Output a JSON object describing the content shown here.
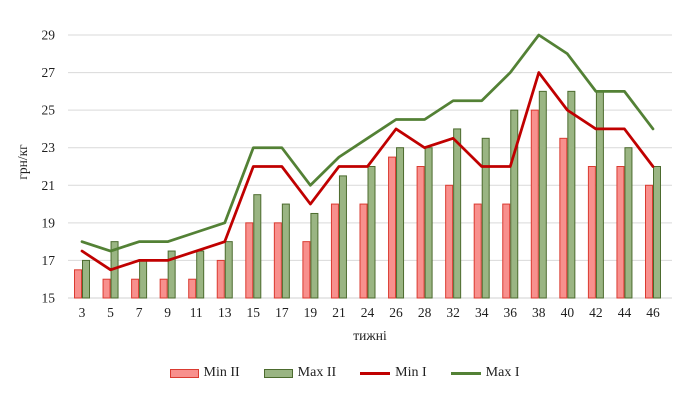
{
  "chart_data": {
    "type": "combo-bar-line",
    "title": "",
    "xlabel": "тижні",
    "ylabel": "грн/кг",
    "ylim": [
      15,
      29
    ],
    "ytick_step": 2,
    "yticks": [
      15,
      17,
      19,
      21,
      23,
      25,
      27,
      29
    ],
    "x_categories": [
      "3",
      "5",
      "7",
      "9",
      "11",
      "13",
      "15",
      "17",
      "19",
      "21",
      "24",
      "26",
      "28",
      "32",
      "34",
      "36",
      "38",
      "40",
      "42",
      "44",
      "46"
    ],
    "grid": true,
    "legend_position": "bottom",
    "series": [
      {
        "name": "Min II",
        "type": "bar",
        "color_fill": "#f8908d",
        "color_border": "#da3b31",
        "values": [
          16.5,
          16,
          16,
          16,
          16,
          17,
          19,
          19,
          18,
          20,
          20,
          22.5,
          22,
          21,
          20,
          20,
          25,
          23.5,
          22,
          22,
          21
        ]
      },
      {
        "name": "Max II",
        "type": "bar",
        "color_fill": "#9ab583",
        "color_border": "#4c6b2e",
        "values": [
          17,
          18,
          17,
          17.5,
          17.5,
          18,
          20.5,
          20,
          19.5,
          21.5,
          22,
          23,
          23,
          24,
          23.5,
          25,
          26,
          26,
          26,
          23,
          22
        ]
      },
      {
        "name": "Min I",
        "type": "line",
        "color": "#c00000",
        "values": [
          17.5,
          16.5,
          17,
          17,
          17.5,
          18,
          22,
          22,
          20,
          22,
          22,
          24,
          23,
          23.5,
          22,
          22,
          27,
          25,
          24,
          24,
          22
        ]
      },
      {
        "name": "Max I",
        "type": "line",
        "color": "#538135",
        "values": [
          18,
          17.5,
          18,
          18,
          18.5,
          19,
          23,
          23,
          21,
          22.5,
          23.5,
          24.5,
          24.5,
          25.5,
          25.5,
          27,
          29,
          28,
          26,
          26,
          24
        ]
      }
    ]
  },
  "colors": {
    "gridline": "#d9d9d9",
    "axis_line": "#d0d0d0",
    "text": "#1f1f1f",
    "background": "#ffffff"
  }
}
